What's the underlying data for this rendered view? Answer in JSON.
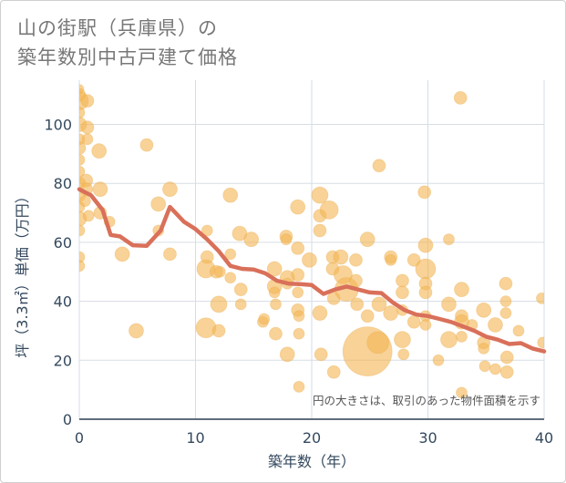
{
  "title_lines": [
    "山の街駅（兵庫県）の",
    "築年数別中古戸建て価格"
  ],
  "chart_data": {
    "type": "scatter",
    "title": "山の街駅（兵庫県）の築年数別中古戸建て価格",
    "xlabel": "築年数（年）",
    "ylabel": "坪（3.3㎡）単価（万円）",
    "xlim": [
      0,
      40
    ],
    "ylim": [
      0,
      115
    ],
    "xticks": [
      0,
      10,
      20,
      30,
      40
    ],
    "yticks": [
      0,
      20,
      40,
      60,
      80,
      100
    ],
    "grid": true,
    "note": "円の大きさは、取引のあった物件面積を示す",
    "colors": {
      "bubble": "#f4b755",
      "trend": "#d9705a",
      "axis_text": "#34495e",
      "grid": "#d6dde4"
    },
    "series": [
      {
        "kind": "bubble",
        "points": [
          {
            "x": 0,
            "y": 112,
            "s": 5
          },
          {
            "x": 0,
            "y": 110,
            "s": 7
          },
          {
            "x": 0,
            "y": 108,
            "s": 10
          },
          {
            "x": 0,
            "y": 104,
            "s": 6
          },
          {
            "x": 0,
            "y": 100,
            "s": 8
          },
          {
            "x": 0,
            "y": 95,
            "s": 6
          },
          {
            "x": 0,
            "y": 92,
            "s": 7
          },
          {
            "x": 0,
            "y": 88,
            "s": 6
          },
          {
            "x": 0,
            "y": 84,
            "s": 6
          },
          {
            "x": 0,
            "y": 80,
            "s": 7
          },
          {
            "x": 0,
            "y": 76,
            "s": 7
          },
          {
            "x": 0,
            "y": 72,
            "s": 6
          },
          {
            "x": 0,
            "y": 68,
            "s": 8
          },
          {
            "x": 0,
            "y": 64,
            "s": 6
          },
          {
            "x": 0,
            "y": 55,
            "s": 6
          },
          {
            "x": 0,
            "y": 52,
            "s": 6
          },
          {
            "x": 0.7,
            "y": 108,
            "s": 7
          },
          {
            "x": 0.7,
            "y": 99,
            "s": 7
          },
          {
            "x": 0.7,
            "y": 95,
            "s": 6
          },
          {
            "x": 0.6,
            "y": 81,
            "s": 7
          },
          {
            "x": 0.6,
            "y": 78,
            "s": 7
          },
          {
            "x": 0.5,
            "y": 74,
            "s": 6
          },
          {
            "x": 0.8,
            "y": 69,
            "s": 6
          },
          {
            "x": 1.7,
            "y": 91,
            "s": 8
          },
          {
            "x": 1.8,
            "y": 78,
            "s": 8
          },
          {
            "x": 1.8,
            "y": 70,
            "s": 7
          },
          {
            "x": 2.6,
            "y": 67,
            "s": 6
          },
          {
            "x": 3.7,
            "y": 56,
            "s": 8
          },
          {
            "x": 4.9,
            "y": 30,
            "s": 8
          },
          {
            "x": 5.8,
            "y": 93,
            "s": 7
          },
          {
            "x": 6.8,
            "y": 73,
            "s": 8
          },
          {
            "x": 6.8,
            "y": 64,
            "s": 6
          },
          {
            "x": 7.8,
            "y": 78,
            "s": 8
          },
          {
            "x": 7.8,
            "y": 56,
            "s": 7
          },
          {
            "x": 10.9,
            "y": 51,
            "s": 10
          },
          {
            "x": 10.9,
            "y": 31,
            "s": 11
          },
          {
            "x": 11,
            "y": 64,
            "s": 6
          },
          {
            "x": 11,
            "y": 55,
            "s": 7
          },
          {
            "x": 11.8,
            "y": 50,
            "s": 7
          },
          {
            "x": 12,
            "y": 39,
            "s": 9
          },
          {
            "x": 12,
            "y": 30,
            "s": 7
          },
          {
            "x": 12.1,
            "y": 50,
            "s": 6
          },
          {
            "x": 13,
            "y": 76,
            "s": 8
          },
          {
            "x": 13,
            "y": 56,
            "s": 6
          },
          {
            "x": 13,
            "y": 48,
            "s": 6
          },
          {
            "x": 13.8,
            "y": 63,
            "s": 8
          },
          {
            "x": 13.9,
            "y": 44,
            "s": 7
          },
          {
            "x": 13.9,
            "y": 39,
            "s": 6
          },
          {
            "x": 14.8,
            "y": 61,
            "s": 8
          },
          {
            "x": 15.8,
            "y": 33,
            "s": 6
          },
          {
            "x": 15.9,
            "y": 34,
            "s": 6
          },
          {
            "x": 16.8,
            "y": 51,
            "s": 8
          },
          {
            "x": 16.8,
            "y": 45,
            "s": 8
          },
          {
            "x": 16.8,
            "y": 43,
            "s": 6
          },
          {
            "x": 16.9,
            "y": 39,
            "s": 6
          },
          {
            "x": 16.9,
            "y": 29,
            "s": 7
          },
          {
            "x": 17.8,
            "y": 62,
            "s": 7
          },
          {
            "x": 17.8,
            "y": 61,
            "s": 6
          },
          {
            "x": 17.9,
            "y": 48,
            "s": 8
          },
          {
            "x": 17.9,
            "y": 46,
            "s": 6
          },
          {
            "x": 17.9,
            "y": 22,
            "s": 8
          },
          {
            "x": 18.8,
            "y": 72,
            "s": 8
          },
          {
            "x": 18.8,
            "y": 58,
            "s": 7
          },
          {
            "x": 18.8,
            "y": 49,
            "s": 7
          },
          {
            "x": 18.8,
            "y": 43,
            "s": 6
          },
          {
            "x": 18.8,
            "y": 37,
            "s": 7
          },
          {
            "x": 18.9,
            "y": 35,
            "s": 6
          },
          {
            "x": 18.9,
            "y": 29,
            "s": 6
          },
          {
            "x": 18.9,
            "y": 11,
            "s": 6
          },
          {
            "x": 19.8,
            "y": 54,
            "s": 8
          },
          {
            "x": 20.7,
            "y": 76,
            "s": 9
          },
          {
            "x": 20.7,
            "y": 69,
            "s": 7
          },
          {
            "x": 20.7,
            "y": 64,
            "s": 7
          },
          {
            "x": 20.7,
            "y": 36,
            "s": 8
          },
          {
            "x": 20.8,
            "y": 22,
            "s": 7
          },
          {
            "x": 21.5,
            "y": 71,
            "s": 10
          },
          {
            "x": 21.8,
            "y": 55,
            "s": 7
          },
          {
            "x": 21.8,
            "y": 51,
            "s": 7
          },
          {
            "x": 21.9,
            "y": 41,
            "s": 7
          },
          {
            "x": 21.9,
            "y": 16,
            "s": 7
          },
          {
            "x": 22.5,
            "y": 55,
            "s": 8
          },
          {
            "x": 22.7,
            "y": 49,
            "s": 10
          },
          {
            "x": 23,
            "y": 44,
            "s": 13
          },
          {
            "x": 23.8,
            "y": 54,
            "s": 7
          },
          {
            "x": 23.8,
            "y": 47,
            "s": 7
          },
          {
            "x": 23.9,
            "y": 39,
            "s": 7
          },
          {
            "x": 24.8,
            "y": 61,
            "s": 8
          },
          {
            "x": 24.8,
            "y": 35,
            "s": 7
          },
          {
            "x": 24.8,
            "y": 23,
            "s": 27
          },
          {
            "x": 25.7,
            "y": 26,
            "s": 12
          },
          {
            "x": 25.8,
            "y": 86,
            "s": 7
          },
          {
            "x": 25.8,
            "y": 39,
            "s": 8
          },
          {
            "x": 26.8,
            "y": 55,
            "s": 7
          },
          {
            "x": 26.8,
            "y": 54,
            "s": 6
          },
          {
            "x": 26.8,
            "y": 36,
            "s": 8
          },
          {
            "x": 27.8,
            "y": 47,
            "s": 7
          },
          {
            "x": 27.8,
            "y": 43,
            "s": 7
          },
          {
            "x": 27.8,
            "y": 37,
            "s": 6
          },
          {
            "x": 27.8,
            "y": 27,
            "s": 9
          },
          {
            "x": 27.9,
            "y": 22,
            "s": 6
          },
          {
            "x": 28.8,
            "y": 54,
            "s": 7
          },
          {
            "x": 28.8,
            "y": 33,
            "s": 7
          },
          {
            "x": 29.7,
            "y": 77,
            "s": 7
          },
          {
            "x": 29.8,
            "y": 59,
            "s": 8
          },
          {
            "x": 29.8,
            "y": 51,
            "s": 11
          },
          {
            "x": 29.8,
            "y": 46,
            "s": 7
          },
          {
            "x": 29.8,
            "y": 43,
            "s": 7
          },
          {
            "x": 29.8,
            "y": 35,
            "s": 6
          },
          {
            "x": 29.8,
            "y": 32,
            "s": 6
          },
          {
            "x": 30.9,
            "y": 20,
            "s": 6
          },
          {
            "x": 31.8,
            "y": 61,
            "s": 6
          },
          {
            "x": 31.8,
            "y": 39,
            "s": 8
          },
          {
            "x": 31.8,
            "y": 27,
            "s": 9
          },
          {
            "x": 32.8,
            "y": 109,
            "s": 7
          },
          {
            "x": 32.9,
            "y": 44,
            "s": 8
          },
          {
            "x": 32.9,
            "y": 35,
            "s": 7
          },
          {
            "x": 32.9,
            "y": 33,
            "s": 8
          },
          {
            "x": 32.9,
            "y": 28,
            "s": 6
          },
          {
            "x": 32.9,
            "y": 9,
            "s": 6
          },
          {
            "x": 33.8,
            "y": 32,
            "s": 6
          },
          {
            "x": 34.8,
            "y": 37,
            "s": 8
          },
          {
            "x": 34.8,
            "y": 26,
            "s": 7
          },
          {
            "x": 34.8,
            "y": 24,
            "s": 6
          },
          {
            "x": 34.9,
            "y": 18,
            "s": 6
          },
          {
            "x": 35.8,
            "y": 32,
            "s": 8
          },
          {
            "x": 35.8,
            "y": 17,
            "s": 6
          },
          {
            "x": 36.7,
            "y": 46,
            "s": 7
          },
          {
            "x": 36.7,
            "y": 40,
            "s": 6
          },
          {
            "x": 36.7,
            "y": 36,
            "s": 6
          },
          {
            "x": 36.8,
            "y": 21,
            "s": 7
          },
          {
            "x": 36.8,
            "y": 16,
            "s": 7
          },
          {
            "x": 37.8,
            "y": 30,
            "s": 6
          },
          {
            "x": 39.8,
            "y": 41,
            "s": 6
          },
          {
            "x": 39.9,
            "y": 26,
            "s": 6
          }
        ]
      },
      {
        "kind": "line",
        "points": [
          {
            "x": 0,
            "y": 78
          },
          {
            "x": 1,
            "y": 76
          },
          {
            "x": 2,
            "y": 71
          },
          {
            "x": 2.7,
            "y": 62.5
          },
          {
            "x": 3.5,
            "y": 62
          },
          {
            "x": 4.6,
            "y": 59
          },
          {
            "x": 5.8,
            "y": 58.8
          },
          {
            "x": 7,
            "y": 64
          },
          {
            "x": 7.8,
            "y": 72
          },
          {
            "x": 9,
            "y": 67
          },
          {
            "x": 10,
            "y": 64.5
          },
          {
            "x": 11,
            "y": 61
          },
          {
            "x": 12,
            "y": 57
          },
          {
            "x": 13,
            "y": 52
          },
          {
            "x": 14,
            "y": 51
          },
          {
            "x": 15,
            "y": 50.8
          },
          {
            "x": 16,
            "y": 49.5
          },
          {
            "x": 17,
            "y": 47
          },
          {
            "x": 18,
            "y": 46
          },
          {
            "x": 19,
            "y": 45.8
          },
          {
            "x": 20,
            "y": 45.5
          },
          {
            "x": 21,
            "y": 42.5
          },
          {
            "x": 22,
            "y": 44
          },
          {
            "x": 23,
            "y": 45
          },
          {
            "x": 24,
            "y": 44
          },
          {
            "x": 25,
            "y": 43
          },
          {
            "x": 26,
            "y": 42.8
          },
          {
            "x": 27,
            "y": 39.5
          },
          {
            "x": 28,
            "y": 37
          },
          {
            "x": 29,
            "y": 35.5
          },
          {
            "x": 30,
            "y": 35
          },
          {
            "x": 31,
            "y": 34
          },
          {
            "x": 32,
            "y": 33
          },
          {
            "x": 33,
            "y": 31.5
          },
          {
            "x": 34,
            "y": 30
          },
          {
            "x": 35,
            "y": 28
          },
          {
            "x": 36,
            "y": 27
          },
          {
            "x": 37,
            "y": 25.5
          },
          {
            "x": 38,
            "y": 25.8
          },
          {
            "x": 39,
            "y": 24
          },
          {
            "x": 40,
            "y": 23
          }
        ]
      }
    ]
  }
}
